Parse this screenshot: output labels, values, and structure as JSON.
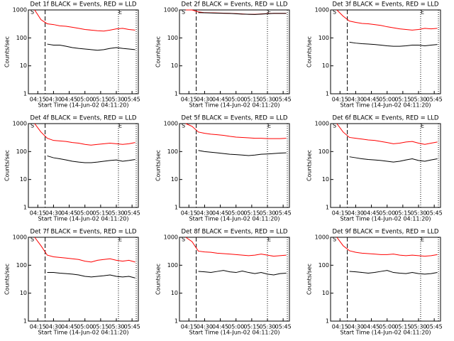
{
  "chart_data": [
    {
      "type": "line",
      "title": "Det 1f BLACK = Events, RED = LLD",
      "xlabel": "Start Time (14-Jun-02 04:11:20)",
      "ylabel": "Counts/sec",
      "log_y": true,
      "x": [
        "04:12",
        "04:18",
        "04:24",
        "04:30",
        "04:36",
        "04:42",
        "04:48",
        "04:54",
        "05:00",
        "05:06",
        "05:12",
        "05:18",
        "05:24",
        "05:30",
        "05:36",
        "05:42",
        "05:48"
      ],
      "series": [
        {
          "name": "LLD",
          "color": "#ff0000",
          "values": [
            1000,
            450,
            320,
            300,
            270,
            260,
            240,
            220,
            200,
            190,
            180,
            175,
            190,
            210,
            220,
            200,
            190
          ]
        },
        {
          "name": "Events",
          "color": "#000000",
          "values": [
            null,
            null,
            60,
            55,
            55,
            50,
            45,
            42,
            40,
            38,
            36,
            38,
            42,
            45,
            42,
            40,
            38
          ]
        }
      ],
      "xlim": [
        "04:06",
        "05:51"
      ],
      "xticks": [
        "04:15",
        "04:30",
        "04:45",
        "05:00",
        "05:15",
        "05:30",
        "05:45"
      ],
      "ylim": [
        1,
        1000
      ],
      "yticks": [
        1,
        10,
        100,
        1000
      ],
      "annotations": [
        {
          "text": "S",
          "x": "04:08"
        },
        {
          "text": "E",
          "x": "05:32"
        }
      ],
      "vlines": [
        {
          "x": "04:22",
          "style": "dashed"
        },
        {
          "x": "05:32",
          "style": "dotted"
        },
        {
          "x": "05:49",
          "style": "dotted"
        }
      ]
    },
    {
      "type": "line",
      "title": "Det 2f BLACK = Events, RED = LLD",
      "xlabel": "Start Time (14-Jun-02 04:11:20)",
      "ylabel": "Counts/sec",
      "log_y": true,
      "x": [
        "04:12",
        "04:18",
        "04:24",
        "04:30",
        "04:36",
        "04:42",
        "04:48",
        "04:54",
        "05:00",
        "05:06",
        "05:12",
        "05:18",
        "05:24",
        "05:30",
        "05:36",
        "05:42",
        "05:48"
      ],
      "series": [
        {
          "name": "LLD",
          "color": "#ff0000",
          "values": [
            1000,
            1000,
            850,
            800,
            790,
            780,
            770,
            760,
            740,
            720,
            700,
            700,
            720,
            740,
            760,
            760,
            760
          ]
        },
        {
          "name": "Events",
          "color": "#000000",
          "values": [
            null,
            null,
            800,
            790,
            780,
            770,
            760,
            750,
            730,
            710,
            700,
            690,
            710,
            730,
            750,
            750,
            750
          ]
        }
      ],
      "xlim": [
        "04:06",
        "05:51"
      ],
      "xticks": [
        "04:15",
        "04:30",
        "04:45",
        "05:00",
        "05:15",
        "05:30",
        "05:45"
      ],
      "ylim": [
        1,
        1000
      ],
      "yticks": [
        1,
        10,
        100,
        1000
      ],
      "annotations": [
        {
          "text": "S",
          "x": "04:08"
        },
        {
          "text": "E",
          "x": "05:30"
        }
      ],
      "vlines": [
        {
          "x": "04:22",
          "style": "dashed"
        },
        {
          "x": "05:30",
          "style": "dotted"
        },
        {
          "x": "05:49",
          "style": "dotted"
        }
      ]
    },
    {
      "type": "line",
      "title": "Det 3f BLACK = Events, RED = LLD",
      "xlabel": "Start Time (14-Jun-02 04:11:20)",
      "ylabel": "Counts/sec",
      "log_y": true,
      "x": [
        "04:12",
        "04:18",
        "04:24",
        "04:30",
        "04:36",
        "04:42",
        "04:48",
        "04:54",
        "05:00",
        "05:06",
        "05:12",
        "05:18",
        "05:24",
        "05:30",
        "05:36",
        "05:42",
        "05:48"
      ],
      "series": [
        {
          "name": "LLD",
          "color": "#ff0000",
          "values": [
            1000,
            600,
            400,
            360,
            330,
            320,
            300,
            280,
            250,
            230,
            210,
            200,
            190,
            200,
            220,
            210,
            220
          ]
        },
        {
          "name": "Events",
          "color": "#000000",
          "values": [
            null,
            null,
            70,
            65,
            62,
            60,
            58,
            55,
            52,
            50,
            50,
            52,
            55,
            55,
            52,
            55,
            58
          ]
        }
      ],
      "xlim": [
        "04:06",
        "05:51"
      ],
      "xticks": [
        "04:15",
        "04:30",
        "04:45",
        "05:00",
        "05:15",
        "05:30",
        "05:45"
      ],
      "ylim": [
        1,
        1000
      ],
      "yticks": [
        1,
        10,
        100,
        1000
      ],
      "annotations": [
        {
          "text": "S",
          "x": "04:08"
        },
        {
          "text": "E",
          "x": "05:32"
        }
      ],
      "vlines": [
        {
          "x": "04:22",
          "style": "dashed"
        },
        {
          "x": "05:32",
          "style": "dotted"
        },
        {
          "x": "05:49",
          "style": "dotted"
        }
      ]
    },
    {
      "type": "line",
      "title": "Det 4f BLACK = Events, RED = LLD",
      "xlabel": "Start Time (14-Jun-02 04:11:20)",
      "ylabel": "Counts/sec",
      "log_y": true,
      "x": [
        "04:12",
        "04:18",
        "04:24",
        "04:30",
        "04:36",
        "04:42",
        "04:48",
        "04:54",
        "05:00",
        "05:06",
        "05:12",
        "05:18",
        "05:24",
        "05:30",
        "05:36",
        "05:42",
        "05:48"
      ],
      "series": [
        {
          "name": "LLD",
          "color": "#ff0000",
          "values": [
            1000,
            500,
            300,
            250,
            240,
            230,
            210,
            200,
            180,
            170,
            180,
            190,
            200,
            190,
            180,
            190,
            210
          ]
        },
        {
          "name": "Events",
          "color": "#000000",
          "values": [
            null,
            null,
            70,
            60,
            55,
            50,
            45,
            42,
            40,
            40,
            42,
            45,
            48,
            50,
            45,
            48,
            52
          ]
        }
      ],
      "xlim": [
        "04:06",
        "05:51"
      ],
      "xticks": [
        "04:15",
        "04:30",
        "04:45",
        "05:00",
        "05:15",
        "05:30",
        "05:45"
      ],
      "ylim": [
        1,
        1000
      ],
      "yticks": [
        1,
        10,
        100,
        1000
      ],
      "annotations": [
        {
          "text": "S",
          "x": "04:08"
        },
        {
          "text": "E",
          "x": "05:32"
        }
      ],
      "vlines": [
        {
          "x": "04:22",
          "style": "dashed"
        },
        {
          "x": "05:32",
          "style": "dotted"
        },
        {
          "x": "05:49",
          "style": "dotted"
        }
      ]
    },
    {
      "type": "line",
      "title": "Det 5f BLACK = Events, RED = LLD",
      "xlabel": "Start Time (14-Jun-02 04:11:20)",
      "ylabel": "Counts/sec",
      "log_y": true,
      "x": [
        "04:12",
        "04:18",
        "04:24",
        "04:30",
        "04:36",
        "04:42",
        "04:48",
        "04:54",
        "05:00",
        "05:06",
        "05:12",
        "05:18",
        "05:24",
        "05:30",
        "05:36",
        "05:42",
        "05:48"
      ],
      "series": [
        {
          "name": "LLD",
          "color": "#ff0000",
          "values": [
            1000,
            800,
            500,
            450,
            420,
            400,
            380,
            350,
            330,
            320,
            310,
            300,
            300,
            290,
            290,
            290,
            300
          ]
        },
        {
          "name": "Events",
          "color": "#000000",
          "values": [
            null,
            null,
            110,
            100,
            95,
            90,
            85,
            80,
            78,
            75,
            72,
            75,
            80,
            82,
            85,
            88,
            90
          ]
        }
      ],
      "xlim": [
        "04:06",
        "05:51"
      ],
      "xticks": [
        "04:15",
        "04:30",
        "04:45",
        "05:00",
        "05:15",
        "05:30",
        "05:45"
      ],
      "ylim": [
        1,
        1000
      ],
      "yticks": [
        1,
        10,
        100,
        1000
      ],
      "annotations": [
        {
          "text": "S",
          "x": "04:08"
        },
        {
          "text": "E",
          "x": "05:30"
        }
      ],
      "vlines": [
        {
          "x": "04:22",
          "style": "dashed"
        },
        {
          "x": "05:30",
          "style": "dotted"
        },
        {
          "x": "05:49",
          "style": "dotted"
        }
      ]
    },
    {
      "type": "line",
      "title": "Det 6f BLACK = Events, RED = LLD",
      "xlabel": "Start Time (14-Jun-02 04:11:20)",
      "ylabel": "Counts/sec",
      "log_y": true,
      "x": [
        "04:12",
        "04:18",
        "04:24",
        "04:30",
        "04:36",
        "04:42",
        "04:48",
        "04:54",
        "05:00",
        "05:06",
        "05:12",
        "05:18",
        "05:24",
        "05:30",
        "05:36",
        "05:42",
        "05:48"
      ],
      "series": [
        {
          "name": "LLD",
          "color": "#ff0000",
          "values": [
            1000,
            500,
            320,
            300,
            280,
            260,
            250,
            230,
            210,
            190,
            200,
            220,
            230,
            200,
            180,
            200,
            220
          ]
        },
        {
          "name": "Events",
          "color": "#000000",
          "values": [
            null,
            null,
            65,
            60,
            55,
            52,
            50,
            48,
            45,
            42,
            45,
            50,
            55,
            48,
            45,
            50,
            55
          ]
        }
      ],
      "xlim": [
        "04:06",
        "05:51"
      ],
      "xticks": [
        "04:15",
        "04:30",
        "04:45",
        "05:00",
        "05:15",
        "05:30",
        "05:45"
      ],
      "ylim": [
        1,
        1000
      ],
      "yticks": [
        1,
        10,
        100,
        1000
      ],
      "annotations": [
        {
          "text": "S",
          "x": "04:08"
        },
        {
          "text": "E",
          "x": "05:32"
        }
      ],
      "vlines": [
        {
          "x": "04:22",
          "style": "dashed"
        },
        {
          "x": "05:32",
          "style": "dotted"
        },
        {
          "x": "05:49",
          "style": "dotted"
        }
      ]
    },
    {
      "type": "line",
      "title": "Det 7f BLACK = Events, RED = LLD",
      "xlabel": "Start Time (14-Jun-02 04:11:20)",
      "ylabel": "Counts/sec",
      "log_y": true,
      "x": [
        "04:12",
        "04:18",
        "04:24",
        "04:30",
        "04:36",
        "04:42",
        "04:48",
        "04:54",
        "05:00",
        "05:06",
        "05:12",
        "05:18",
        "05:24",
        "05:30",
        "05:36",
        "05:42",
        "05:48"
      ],
      "series": [
        {
          "name": "LLD",
          "color": "#ff0000",
          "values": [
            1000,
            500,
            230,
            200,
            190,
            180,
            170,
            160,
            140,
            130,
            150,
            160,
            170,
            150,
            140,
            150,
            130
          ]
        },
        {
          "name": "Events",
          "color": "#000000",
          "values": [
            null,
            null,
            55,
            55,
            52,
            50,
            48,
            45,
            40,
            38,
            40,
            42,
            45,
            40,
            38,
            40,
            35
          ]
        }
      ],
      "xlim": [
        "04:06",
        "05:51"
      ],
      "xticks": [
        "04:15",
        "04:30",
        "04:45",
        "05:00",
        "05:15",
        "05:30",
        "05:45"
      ],
      "ylim": [
        1,
        1000
      ],
      "yticks": [
        1,
        10,
        100,
        1000
      ],
      "annotations": [
        {
          "text": "S",
          "x": "04:08"
        },
        {
          "text": "E",
          "x": "05:32"
        }
      ],
      "vlines": [
        {
          "x": "04:22",
          "style": "dashed"
        },
        {
          "x": "05:32",
          "style": "dotted"
        },
        {
          "x": "05:49",
          "style": "dotted"
        }
      ]
    },
    {
      "type": "line",
      "title": "Det 8f BLACK = Events, RED = LLD",
      "xlabel": "Start Time (14-Jun-02 04:11:20)",
      "ylabel": "Counts/sec",
      "log_y": true,
      "x": [
        "04:12",
        "04:18",
        "04:24",
        "04:30",
        "04:36",
        "04:42",
        "04:48",
        "04:54",
        "05:00",
        "05:06",
        "05:12",
        "05:18",
        "05:24",
        "05:30",
        "05:36",
        "05:42",
        "05:48"
      ],
      "series": [
        {
          "name": "LLD",
          "color": "#ff0000",
          "values": [
            1000,
            700,
            320,
            300,
            290,
            270,
            260,
            250,
            240,
            230,
            220,
            230,
            250,
            230,
            210,
            220,
            230
          ]
        },
        {
          "name": "Events",
          "color": "#000000",
          "values": [
            null,
            null,
            60,
            58,
            55,
            60,
            65,
            58,
            55,
            62,
            55,
            50,
            55,
            48,
            45,
            50,
            52
          ]
        }
      ],
      "xlim": [
        "04:06",
        "05:51"
      ],
      "xticks": [
        "04:15",
        "04:30",
        "04:45",
        "05:00",
        "05:15",
        "05:30",
        "05:45"
      ],
      "ylim": [
        1,
        1000
      ],
      "yticks": [
        1,
        10,
        100,
        1000
      ],
      "annotations": [
        {
          "text": "S",
          "x": "04:08"
        },
        {
          "text": "E",
          "x": "05:30"
        }
      ],
      "vlines": [
        {
          "x": "04:22",
          "style": "dashed"
        },
        {
          "x": "05:30",
          "style": "dotted"
        },
        {
          "x": "05:49",
          "style": "dotted"
        }
      ]
    },
    {
      "type": "line",
      "title": "Det 9f BLACK = Events, RED = LLD",
      "xlabel": "Start Time (14-Jun-02 04:11:20)",
      "ylabel": "Counts/sec",
      "log_y": true,
      "x": [
        "04:12",
        "04:18",
        "04:24",
        "04:30",
        "04:36",
        "04:42",
        "04:48",
        "04:54",
        "05:00",
        "05:06",
        "05:12",
        "05:18",
        "05:24",
        "05:30",
        "05:36",
        "05:42",
        "05:48"
      ],
      "series": [
        {
          "name": "LLD",
          "color": "#ff0000",
          "values": [
            1000,
            500,
            330,
            290,
            270,
            260,
            250,
            240,
            240,
            250,
            230,
            220,
            230,
            220,
            210,
            220,
            240
          ]
        },
        {
          "name": "Events",
          "color": "#000000",
          "values": [
            null,
            null,
            60,
            58,
            55,
            52,
            55,
            60,
            65,
            55,
            52,
            50,
            55,
            50,
            48,
            50,
            55
          ]
        }
      ],
      "xlim": [
        "04:06",
        "05:51"
      ],
      "xticks": [
        "04:15",
        "04:30",
        "04:45",
        "05:00",
        "05:15",
        "05:30",
        "05:45"
      ],
      "ylim": [
        1,
        1000
      ],
      "yticks": [
        1,
        10,
        100,
        1000
      ],
      "annotations": [
        {
          "text": "S",
          "x": "04:08"
        },
        {
          "text": "E",
          "x": "05:32"
        }
      ],
      "vlines": [
        {
          "x": "04:22",
          "style": "dashed"
        },
        {
          "x": "05:32",
          "style": "dotted"
        },
        {
          "x": "05:49",
          "style": "dotted"
        }
      ]
    }
  ]
}
